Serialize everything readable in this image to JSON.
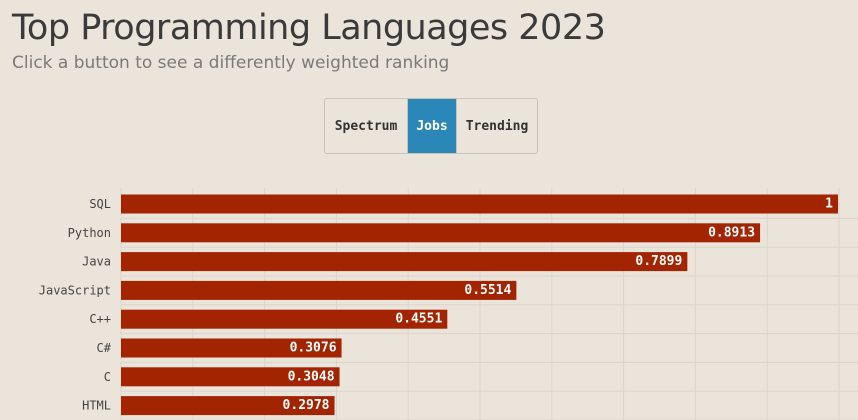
{
  "header": {
    "title": "Top Programming Languages 2023",
    "subtitle": "Click a button to see a differently weighted ranking"
  },
  "buttons": [
    {
      "label": "Spectrum",
      "active": false
    },
    {
      "label": "Jobs",
      "active": true
    },
    {
      "label": "Trending",
      "active": false
    }
  ],
  "colors": {
    "bar": "#a32400",
    "active_button": "#2a87b8",
    "background": "#ebe4da",
    "grid": "#dcd5ca"
  },
  "chart_data": {
    "type": "bar",
    "orientation": "horizontal",
    "categories": [
      "SQL",
      "Python",
      "Java",
      "JavaScript",
      "C++",
      "C#",
      "C",
      "HTML"
    ],
    "values": [
      1,
      0.8913,
      0.7899,
      0.5514,
      0.4551,
      0.3076,
      0.3048,
      0.2978
    ],
    "value_labels": [
      "1",
      "0.8913",
      "0.7899",
      "0.5514",
      "0.4551",
      "0.3076",
      "0.3048",
      "0.2978"
    ],
    "xlim": [
      0,
      1
    ],
    "grid": true,
    "title": "Top Programming Languages 2023",
    "xlabel": "",
    "ylabel": ""
  }
}
